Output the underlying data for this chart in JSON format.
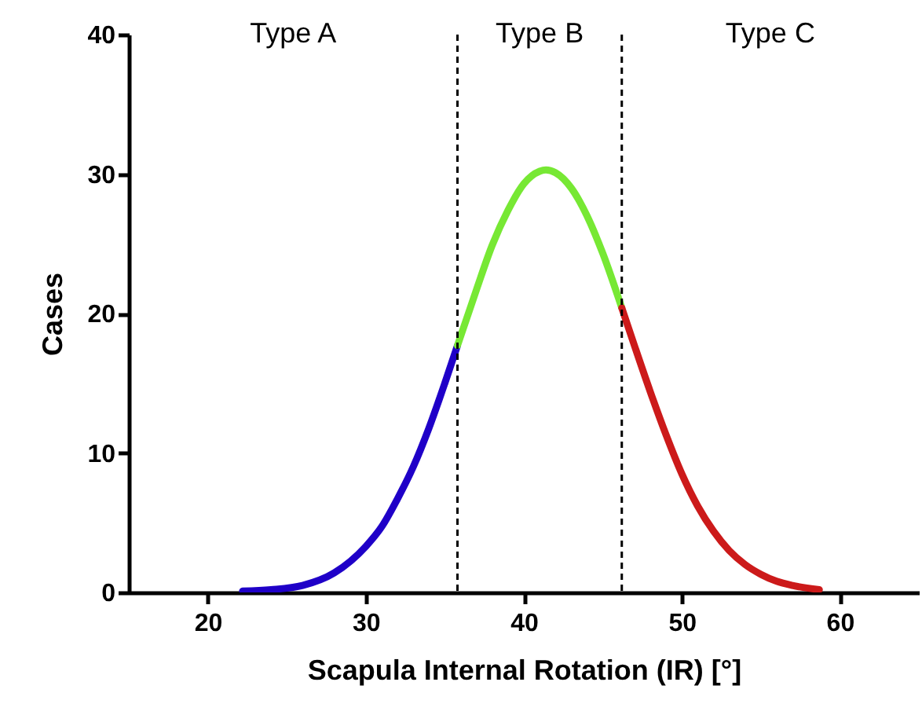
{
  "chart_data": {
    "type": "line",
    "xlabel": "Scapula Internal Rotation (IR) [°]",
    "ylabel": "Cases",
    "xlim": [
      15,
      65
    ],
    "xticks": [
      20,
      30,
      40,
      50,
      60
    ],
    "ylim": [
      0,
      40
    ],
    "yticks": [
      0,
      10,
      20,
      30,
      40
    ],
    "grid": false,
    "line_style": "solid",
    "marker": "none",
    "series": [
      {
        "color": "#1f00c8",
        "x": [
          22.2,
          24,
          26,
          28,
          30,
          31,
          32,
          33,
          34,
          35,
          35.8
        ],
        "values": [
          0.1,
          0.2,
          0.5,
          1.4,
          3.3,
          4.7,
          6.7,
          9.0,
          11.8,
          15.0,
          17.7
        ]
      },
      {
        "color": "#77e834",
        "x": [
          35.8,
          37,
          38,
          39,
          40,
          41,
          41.4,
          42,
          43,
          44,
          45,
          46.2
        ],
        "values": [
          17.7,
          21.7,
          24.9,
          27.4,
          29.3,
          30.2,
          30.3,
          30.1,
          29.0,
          27.0,
          24.3,
          20.4
        ]
      },
      {
        "color": "#cc1a1a",
        "x": [
          46.2,
          47,
          48,
          49,
          50,
          51,
          52,
          53,
          54,
          55,
          56,
          57,
          58.7
        ],
        "values": [
          20.4,
          17.7,
          14.4,
          11.3,
          8.5,
          6.2,
          4.4,
          3.0,
          2.0,
          1.3,
          0.8,
          0.5,
          0.2
        ]
      }
    ],
    "ref_lines": [
      {
        "axis": "x",
        "value": 35.8,
        "color": "#000000",
        "line_style": "dashed"
      },
      {
        "axis": "x",
        "value": 46.2,
        "color": "#000000",
        "line_style": "dashed"
      }
    ],
    "annotations": [
      "Type A",
      "Type B",
      "Type C"
    ]
  }
}
